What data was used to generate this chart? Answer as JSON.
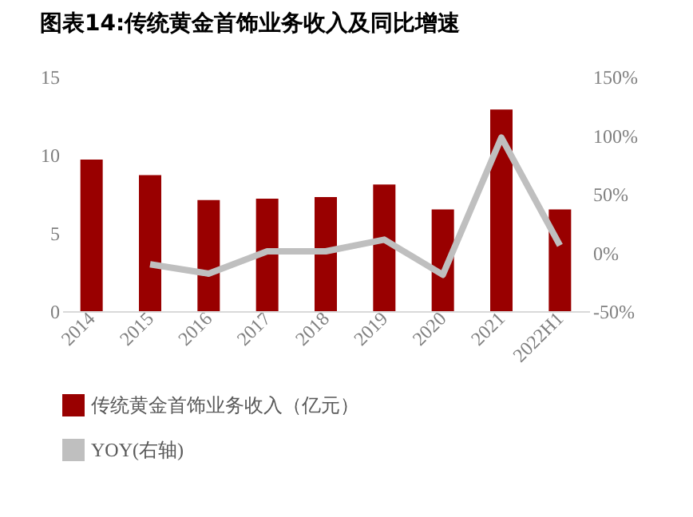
{
  "chart_data": {
    "type": "bar",
    "title": "图表14:传统黄金首饰业务收入及同比增速",
    "categories": [
      "2014",
      "2015",
      "2016",
      "2017",
      "2018",
      "2019",
      "2020",
      "2021",
      "2022H1"
    ],
    "series": [
      {
        "name": "传统黄金首饰业务收入（亿元）",
        "color": "#990000",
        "values": [
          9.7,
          8.7,
          7.1,
          7.2,
          7.3,
          8.1,
          6.5,
          12.9,
          6.5
        ]
      },
      {
        "name": "YOY(右轴)",
        "type": "line",
        "axis": "y2",
        "color": "#bfbfbf",
        "values": [
          null,
          -10,
          -18,
          1,
          1,
          11,
          -19,
          98,
          6
        ]
      }
    ],
    "ylim": [
      0,
      15
    ],
    "yticks": [
      0,
      5,
      10,
      15
    ],
    "y2lim": [
      -50,
      150
    ],
    "y2ticks": [
      {
        "value": -50,
        "label": "-50%"
      },
      {
        "value": 0,
        "label": "0%"
      },
      {
        "value": 50,
        "label": "50%"
      },
      {
        "value": 100,
        "label": "100%"
      },
      {
        "value": 150,
        "label": "150%"
      }
    ],
    "grid": false,
    "legend": "bottom"
  }
}
